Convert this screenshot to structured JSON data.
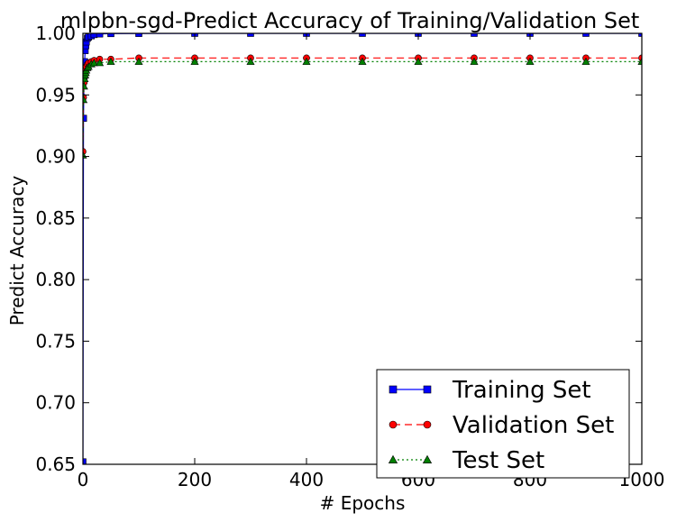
{
  "chart_data": {
    "type": "line",
    "title": "mlpbn-sgd-Predict Accuracy of Training/Validation Set",
    "xlabel": "# Epochs",
    "ylabel": "Predict Accuracy",
    "xlim": [
      0,
      1000
    ],
    "ylim": [
      0.65,
      1.0
    ],
    "xticks": [
      0,
      200,
      400,
      600,
      800,
      1000
    ],
    "yticks": [
      0.65,
      0.7,
      0.75,
      0.8,
      0.85,
      0.9,
      0.95,
      1.0
    ],
    "xtick_labels": [
      "0",
      "200",
      "400",
      "600",
      "800",
      "1000"
    ],
    "ytick_labels": [
      "0.65",
      "0.70",
      "0.75",
      "0.80",
      "0.85",
      "0.90",
      "0.95",
      "1.00"
    ],
    "grid": false,
    "legend_position": "bottom-right",
    "series": [
      {
        "name": "Training Set",
        "color": "#0000ff",
        "marker": "square",
        "linestyle": "solid",
        "x": [
          0,
          1,
          2,
          3,
          4,
          5,
          6,
          8,
          10,
          15,
          20,
          30,
          50,
          100,
          200,
          300,
          400,
          500,
          600,
          700,
          800,
          900,
          1000
        ],
        "y": [
          0.652,
          0.931,
          0.962,
          0.977,
          0.986,
          0.99,
          0.993,
          0.996,
          0.997,
          0.998,
          0.999,
          0.9995,
          0.9998,
          0.9999,
          1.0,
          1.0,
          1.0,
          1.0,
          1.0,
          1.0,
          1.0,
          1.0,
          1.0
        ]
      },
      {
        "name": "Validation Set",
        "color": "#ff0000",
        "marker": "circle",
        "linestyle": "dashed",
        "x": [
          0,
          1,
          2,
          3,
          4,
          5,
          6,
          8,
          10,
          15,
          20,
          30,
          50,
          100,
          200,
          300,
          400,
          500,
          600,
          700,
          800,
          900,
          1000
        ],
        "y": [
          0.904,
          0.948,
          0.96,
          0.966,
          0.969,
          0.971,
          0.973,
          0.975,
          0.976,
          0.977,
          0.978,
          0.979,
          0.979,
          0.98,
          0.98,
          0.98,
          0.98,
          0.98,
          0.98,
          0.98,
          0.98,
          0.98,
          0.98
        ]
      },
      {
        "name": "Test Set",
        "color": "#008000",
        "marker": "triangle",
        "linestyle": "dotted",
        "x": [
          0,
          1,
          2,
          3,
          4,
          5,
          6,
          8,
          10,
          15,
          20,
          30,
          50,
          100,
          200,
          300,
          400,
          500,
          600,
          700,
          800,
          900,
          1000
        ],
        "y": [
          0.901,
          0.946,
          0.957,
          0.963,
          0.966,
          0.968,
          0.97,
          0.972,
          0.973,
          0.975,
          0.976,
          0.976,
          0.977,
          0.977,
          0.977,
          0.977,
          0.977,
          0.977,
          0.977,
          0.977,
          0.977,
          0.977,
          0.977
        ]
      }
    ]
  }
}
